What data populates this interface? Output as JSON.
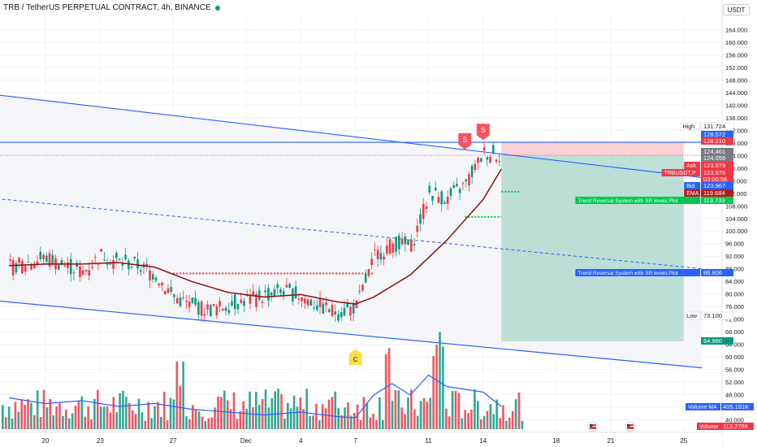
{
  "header": {
    "title": "TRB / TetherUS PERPETUAL CONTRACT, 4h, BINANCE",
    "currency": "USDT"
  },
  "colors": {
    "up": "#089981",
    "down": "#f23645",
    "channel": "#2962ff",
    "ema": "#8e1010",
    "volume_ma": "#2962ff",
    "label_blue": "#2962ff",
    "label_green": "#00c853",
    "take_profit_zone": "#a8d5c8",
    "stop_zone": "#f8c9cc"
  },
  "chart_data": {
    "type": "candlestick",
    "title": "TRB / TetherUS PERPETUAL CONTRACT, 4h, BINANCE",
    "y_axis": {
      "unit": "USDT",
      "range": [
        40,
        170
      ],
      "tick_labels": [
        "164.000",
        "160.000",
        "156.000",
        "152.000",
        "148.000",
        "144.000",
        "140.000",
        "136.000",
        "132.000",
        "128.000",
        "124.000",
        "120.000",
        "116.000",
        "112.000",
        "108.000",
        "104.000",
        "100.000",
        "96.000",
        "92.000",
        "88.000",
        "84.000",
        "80.000",
        "76.000",
        "72.000",
        "68.000",
        "64.000",
        "60.000",
        "56.000",
        "52.000",
        "48.000",
        "44.000",
        "40.000"
      ]
    },
    "x_axis": {
      "tick_labels": [
        {
          "label": "20",
          "date": "2023-11-20"
        },
        {
          "label": "23",
          "date": "2023-11-23"
        },
        {
          "label": "27",
          "date": "2023-11-27"
        },
        {
          "label": "Dec",
          "date": "2023-12-01"
        },
        {
          "label": "4",
          "date": "2023-12-04"
        },
        {
          "label": "7",
          "date": "2023-12-07"
        },
        {
          "label": "11",
          "date": "2023-12-11"
        },
        {
          "label": "14",
          "date": "2023-12-14"
        },
        {
          "label": "18",
          "date": "2023-12-18"
        },
        {
          "label": "21",
          "date": "2023-12-21"
        },
        {
          "label": "25",
          "date": "2023-12-25"
        }
      ]
    },
    "price_series": [
      [
        "2023-11-18",
        88.5
      ],
      [
        "2023-11-19",
        90.0
      ],
      [
        "2023-11-20",
        91.5
      ],
      [
        "2023-11-21",
        89.0
      ],
      [
        "2023-11-22",
        87.0
      ],
      [
        "2023-11-23",
        92.5
      ],
      [
        "2023-11-24",
        90.0
      ],
      [
        "2023-11-25",
        89.0
      ],
      [
        "2023-11-26",
        86.0
      ],
      [
        "2023-11-27",
        79.0
      ],
      [
        "2023-11-28",
        76.0
      ],
      [
        "2023-11-29",
        75.0
      ],
      [
        "2023-11-30",
        76.5
      ],
      [
        "2023-12-01",
        78.0
      ],
      [
        "2023-12-02",
        79.5
      ],
      [
        "2023-12-03",
        81.0
      ],
      [
        "2023-12-04",
        79.0
      ],
      [
        "2023-12-05",
        76.0
      ],
      [
        "2023-12-06",
        74.0
      ],
      [
        "2023-12-07",
        76.0
      ],
      [
        "2023-12-08",
        92.0
      ],
      [
        "2023-12-09",
        96.0
      ],
      [
        "2023-12-10",
        95.0
      ],
      [
        "2023-12-11",
        112.0
      ],
      [
        "2023-12-12",
        110.0
      ],
      [
        "2023-12-13",
        115.0
      ],
      [
        "2023-12-14",
        125.0
      ],
      [
        "2023-12-15",
        123.979
      ]
    ],
    "ema_series": [
      [
        "2023-11-18",
        89.0
      ],
      [
        "2023-11-20",
        89.5
      ],
      [
        "2023-11-22",
        89.5
      ],
      [
        "2023-11-24",
        90.0
      ],
      [
        "2023-11-26",
        88.5
      ],
      [
        "2023-11-28",
        84.0
      ],
      [
        "2023-11-30",
        80.5
      ],
      [
        "2023-12-02",
        79.0
      ],
      [
        "2023-12-04",
        79.8
      ],
      [
        "2023-12-06",
        77.5
      ],
      [
        "2023-12-07",
        76.8
      ],
      [
        "2023-12-08",
        79.0
      ],
      [
        "2023-12-10",
        86.0
      ],
      [
        "2023-12-12",
        97.0
      ],
      [
        "2023-12-14",
        110.0
      ],
      [
        "2023-12-15",
        119.684
      ]
    ],
    "channel": {
      "upper": [
        [
          "2023-11-17",
          143.5
        ],
        [
          "2023-12-26",
          117.0
        ]
      ],
      "lower": [
        [
          "2023-11-17",
          78.0
        ],
        [
          "2023-12-26",
          56.5
        ]
      ],
      "mid": [
        [
          "2023-11-17",
          110.5
        ],
        [
          "2023-12-26",
          88.0
        ]
      ]
    },
    "horizontal_lines": [
      {
        "name": "resistance",
        "value": 128.21
      },
      {
        "name": "dotted-level",
        "value": 86.5,
        "from": "2023-11-27",
        "to": "2023-12-08"
      },
      {
        "name": "dotted-level-2",
        "value": 112.5,
        "from": "2023-12-15",
        "to": "2023-12-16"
      },
      {
        "name": "dotted-level-3",
        "value": 104.5,
        "from": "2023-12-13",
        "to": "2023-12-15"
      }
    ],
    "position_tool": {
      "entry": 124.059,
      "stop": 128.21,
      "target": 64.98,
      "from": "2023-12-15",
      "to": "2023-12-25"
    },
    "signals": [
      {
        "label": "S",
        "date": "2023-12-14",
        "price": 131.0,
        "type": "sell"
      },
      {
        "label": "S",
        "date": "2023-12-13",
        "price": 128.0,
        "type": "sell"
      },
      {
        "label": "C",
        "date": "2023-12-07",
        "price": 61.0,
        "type": "neutral"
      }
    ],
    "price_labels": [
      {
        "name": "high-value",
        "tag": "High",
        "value": "131.724"
      },
      {
        "name": "level-a",
        "tag": "",
        "value": "128.572"
      },
      {
        "name": "resistance-value",
        "tag": "",
        "value": "128.210"
      },
      {
        "name": "price-a",
        "tag": "",
        "value": "124.461"
      },
      {
        "name": "price-b",
        "tag": "",
        "value": "124.059"
      },
      {
        "name": "ask-value",
        "tag": "Ask",
        "value": "123.979"
      },
      {
        "name": "symbol-value",
        "tag": "TRBUSDT.P",
        "value": "123.976"
      },
      {
        "name": "countdown",
        "tag": "",
        "value": "03:00:56"
      },
      {
        "name": "bid-value",
        "tag": "Bid",
        "value": "123.967"
      },
      {
        "name": "ema-value",
        "tag": "EMA",
        "value": "119.684"
      },
      {
        "name": "plot-1",
        "tag": "Trend Reversal System with SR levels:Plot",
        "value": "113.733"
      },
      {
        "name": "plot-2",
        "tag": "Trend Reversal System with SR levels:Plot",
        "value": "86.606"
      },
      {
        "name": "low-value",
        "tag": "Low",
        "value": "73.100"
      },
      {
        "name": "target-value",
        "tag": "",
        "value": "64.980"
      }
    ],
    "volume": {
      "ma_label": "Volume MA",
      "ma_value": "405.191K",
      "label": "Volume",
      "value": "113.276K",
      "ma_series": [
        [
          "2023-11-18",
          0.55
        ],
        [
          "2023-11-20",
          0.45
        ],
        [
          "2023-11-22",
          0.5
        ],
        [
          "2023-11-24",
          0.4
        ],
        [
          "2023-11-26",
          0.45
        ],
        [
          "2023-11-28",
          0.35
        ],
        [
          "2023-11-30",
          0.3
        ],
        [
          "2023-12-02",
          0.25
        ],
        [
          "2023-12-04",
          0.3
        ],
        [
          "2023-12-06",
          0.22
        ],
        [
          "2023-12-07",
          0.2
        ],
        [
          "2023-12-08",
          0.6
        ],
        [
          "2023-12-09",
          0.8
        ],
        [
          "2023-12-10",
          0.6
        ],
        [
          "2023-12-11",
          0.95
        ],
        [
          "2023-12-12",
          0.75
        ],
        [
          "2023-12-13",
          0.7
        ],
        [
          "2023-12-14",
          0.65
        ],
        [
          "2023-12-15",
          0.4
        ]
      ]
    }
  }
}
